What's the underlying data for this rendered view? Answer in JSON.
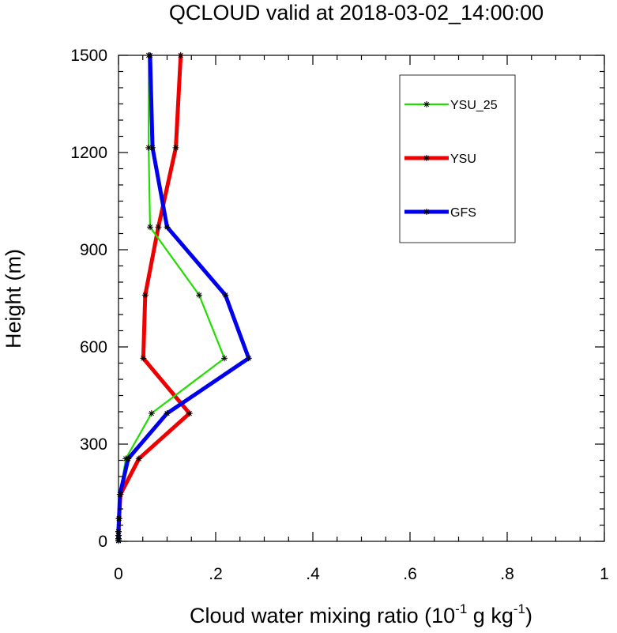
{
  "chart_data": {
    "type": "line",
    "title": "QCLOUD valid at 2018-03-02_14:00:00",
    "xlabel": "Cloud water mixing ratio (10",
    "xlabel_exp": "-1",
    "xlabel_mid": " g kg",
    "xlabel_exp2": "-1",
    "xlabel_end": ")",
    "ylabel": "Height (m)",
    "xlim": [
      0,
      1
    ],
    "ylim": [
      0,
      1500
    ],
    "x_ticks": [
      0,
      0.2,
      0.4,
      0.6,
      0.8,
      1
    ],
    "x_tick_labels": [
      "0",
      ".2",
      ".4",
      ".6",
      ".8",
      "1"
    ],
    "y_ticks": [
      0,
      300,
      600,
      900,
      1200,
      1500
    ],
    "y_tick_labels": [
      "0",
      "300",
      "600",
      "900",
      "1200",
      "1500"
    ],
    "legend_position": "top-right",
    "heights": [
      2,
      8,
      18,
      30,
      70,
      145,
      255,
      395,
      565,
      760,
      970,
      1215,
      1500
    ],
    "series": [
      {
        "name": "YSU_25",
        "color": "#22dd00",
        "width": 2.2,
        "values": [
          0,
          0,
          0,
          0,
          0.001,
          0.003,
          0.015,
          0.068,
          0.218,
          0.166,
          0.065,
          0.062,
          0.062
        ]
      },
      {
        "name": "YSU",
        "color": "#ee0000",
        "width": 5,
        "values": [
          0,
          0,
          0,
          0,
          0.001,
          0.004,
          0.042,
          0.146,
          0.051,
          0.055,
          0.082,
          0.118,
          0.128
        ]
      },
      {
        "name": "GFS",
        "color": "#0000ee",
        "width": 5,
        "values": [
          0,
          0,
          0,
          0,
          0.001,
          0.003,
          0.02,
          0.1,
          0.268,
          0.22,
          0.1,
          0.07,
          0.065
        ]
      }
    ]
  }
}
